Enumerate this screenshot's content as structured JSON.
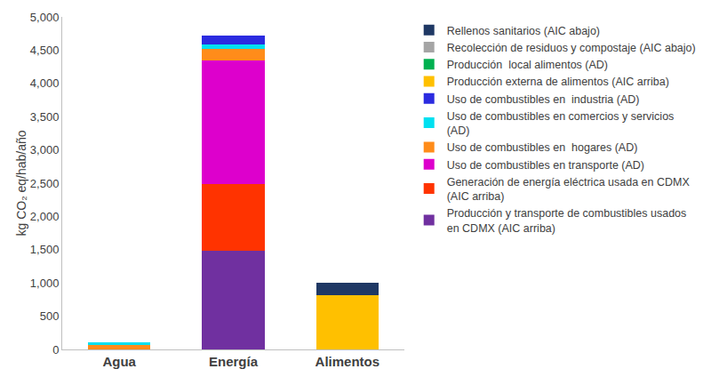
{
  "chart_data": {
    "type": "bar",
    "stacked": true,
    "grid": false,
    "legend": "right",
    "y_label": "kg CO₂ eq/hab/año",
    "categories": [
      "Agua",
      "Energía",
      "Alimentos"
    ],
    "ylim": [
      0,
      5000
    ],
    "yticks": [
      0,
      500,
      {
        "value": 1000,
        "label": "1,000"
      },
      {
        "value": 1500,
        "label": "1,500"
      },
      {
        "value": 2000,
        "label": "2,000"
      },
      {
        "value": 2500,
        "label": "2,500"
      },
      {
        "value": 3000,
        "label": "3,000"
      },
      {
        "value": 3500,
        "label": "3,500"
      },
      {
        "value": 4000,
        "label": "4,000"
      },
      {
        "value": 4500,
        "label": "4,500"
      },
      {
        "value": 5000,
        "label": "5,000"
      }
    ],
    "series": [
      {
        "name": "Producción y transporte de combustibles usados en CDMX (AIC arriba)",
        "color": "#7030a0",
        "values": [
          0,
          1480,
          0
        ]
      },
      {
        "name": "Generación de energía eléctrica usada en CDMX (AIC arriba)",
        "color": "#ff3300",
        "values": [
          0,
          1010,
          0
        ]
      },
      {
        "name": "Uso de combustibles en transporte (AD)",
        "color": "#dd00cc",
        "values": [
          0,
          1850,
          0
        ]
      },
      {
        "name": "Uso de combustibles en  hogares (AD)",
        "color": "#ff8c1a",
        "values": [
          70,
          180,
          0
        ]
      },
      {
        "name": "Uso de combustibles en comercios y servicios (AD)",
        "color": "#00e0f0",
        "values": [
          40,
          60,
          0
        ]
      },
      {
        "name": "Uso de combustibles en  industria (AD)",
        "color": "#2b2be0",
        "values": [
          0,
          140,
          0
        ]
      },
      {
        "name": "Producción externa de alimentos (AIC arriba)",
        "color": "#ffc000",
        "values": [
          0,
          0,
          810
        ]
      },
      {
        "name": "Producción  local alimentos (AD)",
        "color": "#00b050",
        "values": [
          0,
          0,
          0
        ]
      },
      {
        "name": "Recolección de residuos y compostaje (AIC abajo)",
        "color": "#a5a5a5",
        "values": [
          0,
          0,
          0
        ]
      },
      {
        "name": "Rellenos sanitarios (AIC abajo)",
        "color": "#1f3864",
        "values": [
          0,
          0,
          190
        ]
      }
    ]
  }
}
